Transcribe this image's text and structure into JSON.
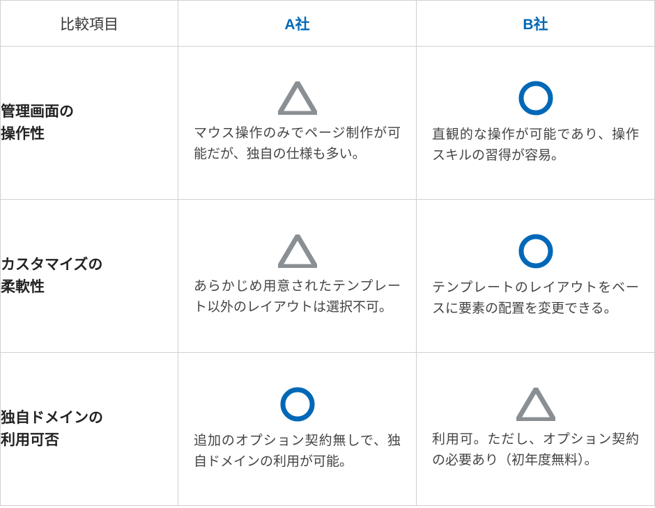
{
  "colors": {
    "accent": "#0068b7",
    "triangle": "#8a8f94",
    "circle": "#0068b7",
    "border": "#d0d0d0",
    "text": "#333333",
    "label_text": "#222222",
    "desc_text": "#444444"
  },
  "header": {
    "col1": "比較項目",
    "col2": "A社",
    "col3": "B社"
  },
  "rows": [
    {
      "label": "管理画面の\n操作性",
      "a": {
        "rating": "triangle",
        "description": "マウス操作のみでページ制作が可能だが、独自の仕様も多い。"
      },
      "b": {
        "rating": "circle",
        "description": "直観的な操作が可能であり、操作スキルの習得が容易。"
      }
    },
    {
      "label": "カスタマイズの\n柔軟性",
      "a": {
        "rating": "triangle",
        "description": "あらかじめ用意されたテンプレート以外のレイアウトは選択不可。"
      },
      "b": {
        "rating": "circle",
        "description": "テンプレートのレイアウトをベースに要素の配置を変更できる。"
      }
    },
    {
      "label": "独自ドメインの\n利用可否",
      "a": {
        "rating": "circle",
        "description": "追加のオプション契約無しで、独自ドメインの利用が可能。"
      },
      "b": {
        "rating": "triangle",
        "description": "利用可。ただし、オプション契約の必要あり（初年度無料）。"
      }
    }
  ]
}
